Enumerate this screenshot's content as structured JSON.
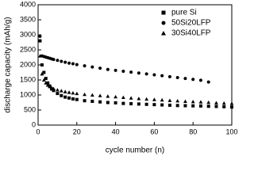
{
  "chart_data": {
    "type": "scatter",
    "xlabel": "cycle number (n)",
    "ylabel": "discharge capacity (mAh/g)",
    "x": [
      1,
      2,
      3,
      4,
      5,
      6,
      7,
      8,
      10,
      12,
      14,
      16,
      18,
      20,
      24,
      28,
      32,
      36,
      40,
      44,
      48,
      52,
      56,
      60,
      64,
      68,
      72,
      76,
      80,
      84,
      88,
      92,
      96,
      100
    ],
    "series": [
      {
        "name": "pure Si",
        "color": "#000000",
        "marker": "square",
        "values": [
          2800,
          2000,
          1750,
          1550,
          1400,
          1300,
          1200,
          1150,
          1050,
          980,
          930,
          900,
          870,
          850,
          810,
          790,
          770,
          750,
          740,
          720,
          710,
          700,
          690,
          680,
          670,
          660,
          650,
          645,
          640,
          635,
          625,
          620,
          610,
          600
        ]
      },
      {
        "name": "50Si20LFP",
        "color": "#000000",
        "marker": "circle",
        "values": [
          2950,
          2300,
          2280,
          2260,
          2240,
          2220,
          2200,
          2180,
          2150,
          2120,
          2090,
          2060,
          2040,
          2010,
          1970,
          1930,
          1890,
          1850,
          1820,
          1790,
          1760,
          1730,
          1700,
          1670,
          1640,
          1610,
          1580,
          1550,
          1520,
          1490,
          1430,
          null,
          null,
          null
        ]
      },
      {
        "name": "30Si40LFP",
        "color": "#000000",
        "marker": "triangle",
        "values": [
          2300,
          1700,
          1500,
          1400,
          1330,
          1280,
          1240,
          1210,
          1170,
          1140,
          1110,
          1090,
          1070,
          1050,
          1020,
          1000,
          980,
          960,
          940,
          920,
          900,
          880,
          865,
          850,
          835,
          820,
          805,
          790,
          780,
          770,
          755,
          740,
          730,
          720
        ]
      }
    ],
    "xlim": [
      0,
      100
    ],
    "xticks": [
      0,
      20,
      40,
      60,
      80,
      100
    ],
    "ylim": [
      0,
      4000
    ],
    "yticks": [
      0,
      500,
      1000,
      1500,
      2000,
      2500,
      3000,
      3500,
      4000
    ],
    "grid": false,
    "legend": "upper right"
  }
}
